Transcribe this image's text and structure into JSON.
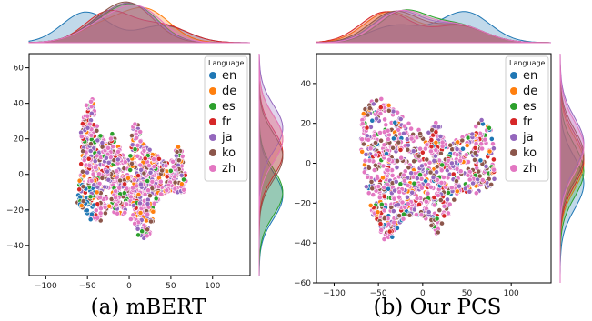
{
  "legend_title": "Language",
  "languages": [
    "en",
    "de",
    "es",
    "fr",
    "ja",
    "ko",
    "zh"
  ],
  "colors": {
    "en": "#1f77b4",
    "de": "#ff7f0e",
    "es": "#2ca02c",
    "fr": "#d62728",
    "ja": "#9467bd",
    "ko": "#8c564b",
    "zh": "#e377c2"
  },
  "chart_data": [
    {
      "type": "scatter",
      "caption": "(a) mBERT",
      "xlim": [
        -120,
        145
      ],
      "ylim": [
        -57,
        68
      ],
      "xticks": [
        -100,
        -50,
        0,
        50,
        100
      ],
      "yticks": [
        -40,
        -20,
        0,
        20,
        40,
        60
      ],
      "tick_labels": {
        "x": [
          "−100",
          "−50",
          "0",
          "50",
          "100"
        ],
        "y": [
          "−40",
          "−20",
          "0",
          "20",
          "40",
          "60"
        ]
      },
      "cluster_outline": [
        [
          -58,
          24
        ],
        [
          -52,
          40
        ],
        [
          -44,
          44
        ],
        [
          -36,
          22
        ],
        [
          -26,
          20
        ],
        [
          -18,
          24
        ],
        [
          -10,
          14
        ],
        [
          0,
          8
        ],
        [
          4,
          27
        ],
        [
          10,
          30
        ],
        [
          16,
          20
        ],
        [
          24,
          14
        ],
        [
          36,
          10
        ],
        [
          44,
          6
        ],
        [
          54,
          12
        ],
        [
          60,
          18
        ],
        [
          66,
          8
        ],
        [
          70,
          -12
        ],
        [
          56,
          -10
        ],
        [
          44,
          -10
        ],
        [
          36,
          -14
        ],
        [
          30,
          -22
        ],
        [
          24,
          -35
        ],
        [
          12,
          -37
        ],
        [
          4,
          -26
        ],
        [
          -6,
          -24
        ],
        [
          -16,
          -22
        ],
        [
          -26,
          -20
        ],
        [
          -34,
          -26
        ],
        [
          -46,
          -26
        ],
        [
          -54,
          -22
        ],
        [
          -62,
          -16
        ],
        [
          -58,
          4
        ]
      ],
      "en_region": [
        -62,
        -28,
        -42,
        -4
      ],
      "legend_position": "upper-right",
      "marginal_x_peaks": {
        "en": -52,
        "de": 22,
        "es": 10,
        "fr": -25,
        "ja": 8,
        "ko": 5,
        "zh": 14
      },
      "marginal_y_peaks": {
        "en": -12,
        "de": 20,
        "es": -10,
        "fr": 12,
        "ja": 26,
        "ko": 10,
        "zh": 20
      }
    },
    {
      "type": "scatter",
      "caption": "(b) Our PCS",
      "xlim": [
        -120,
        145
      ],
      "ylim": [
        -60,
        55
      ],
      "xticks": [
        -100,
        -50,
        0,
        50,
        100
      ],
      "yticks": [
        -60,
        -40,
        -20,
        0,
        20,
        40
      ],
      "tick_labels": {
        "x": [
          "−100",
          "−50",
          "0",
          "50",
          "100"
        ],
        "y": [
          "−60",
          "−40",
          "−20",
          "0",
          "20",
          "40"
        ]
      },
      "cluster_outline": [
        [
          -68,
          28
        ],
        [
          -54,
          32
        ],
        [
          -48,
          34
        ],
        [
          -36,
          28
        ],
        [
          -24,
          24
        ],
        [
          -8,
          18
        ],
        [
          4,
          14
        ],
        [
          16,
          22
        ],
        [
          28,
          10
        ],
        [
          40,
          12
        ],
        [
          54,
          16
        ],
        [
          66,
          22
        ],
        [
          80,
          16
        ],
        [
          82,
          -10
        ],
        [
          72,
          -14
        ],
        [
          54,
          -16
        ],
        [
          44,
          -14
        ],
        [
          34,
          -22
        ],
        [
          24,
          -30
        ],
        [
          16,
          -36
        ],
        [
          4,
          -28
        ],
        [
          -6,
          -26
        ],
        [
          -18,
          -28
        ],
        [
          -28,
          -32
        ],
        [
          -38,
          -40
        ],
        [
          -44,
          -38
        ],
        [
          -52,
          -32
        ],
        [
          -60,
          -20
        ],
        [
          -66,
          -8
        ],
        [
          -70,
          10
        ]
      ],
      "en_region": null,
      "legend_position": "upper-right",
      "marginal_x_peaks": {
        "en": 48,
        "de": -38,
        "es": -22,
        "fr": -42,
        "ja": -28,
        "ko": -32,
        "zh": -25
      },
      "marginal_y_peaks": {
        "en": -10,
        "de": 0,
        "es": -4,
        "fr": 2,
        "ja": 10,
        "ko": 4,
        "zh": 8
      }
    }
  ]
}
